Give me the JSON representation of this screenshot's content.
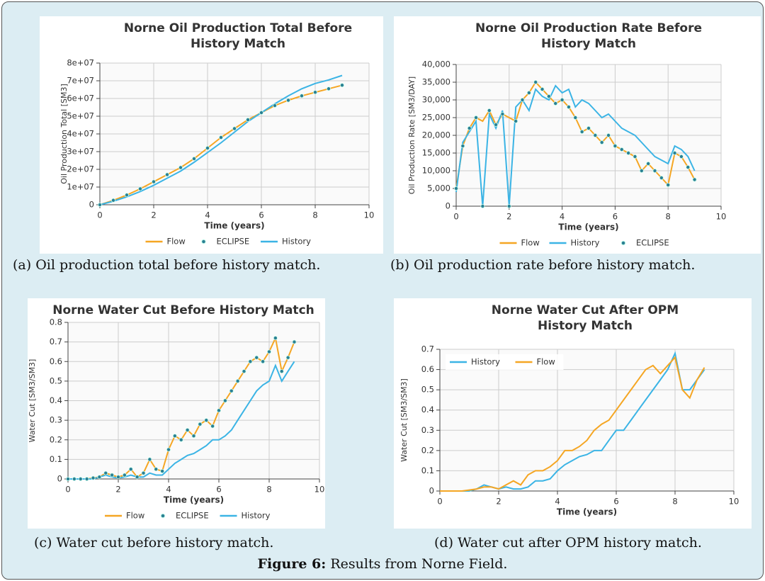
{
  "chart_data": [
    {
      "type": "line",
      "title": "Norne Oil Production Total Before History Match",
      "x_label": "Time (years)",
      "y_label": "Oil Production Total [SM3]",
      "x": [
        0,
        0.5,
        1,
        1.5,
        2,
        2.5,
        3,
        3.5,
        4,
        4.5,
        5,
        5.5,
        6,
        6.5,
        7,
        7.5,
        8,
        8.5,
        9
      ],
      "series": [
        {
          "name": "Flow",
          "color": "#f5a623",
          "style": "line",
          "values": [
            0,
            2500000,
            5500000,
            9000000,
            13000000,
            17000000,
            21000000,
            26000000,
            32000000,
            38000000,
            43000000,
            48000000,
            52000000,
            56000000,
            59000000,
            61500000,
            63500000,
            65500000,
            67500000
          ]
        },
        {
          "name": "ECLIPSE",
          "color": "#2b7f93",
          "style": "markers",
          "values": [
            0,
            2500000,
            5500000,
            9000000,
            13000000,
            17000000,
            21000000,
            26000000,
            32000000,
            38000000,
            43000000,
            48000000,
            52000000,
            56000000,
            59000000,
            61500000,
            63500000,
            65500000,
            67500000
          ]
        },
        {
          "name": "History",
          "color": "#3bb4e5",
          "style": "line",
          "values": [
            0,
            2000000,
            4500000,
            7500000,
            11000000,
            15000000,
            19000000,
            24000000,
            29500000,
            35000000,
            41000000,
            47000000,
            52000000,
            57000000,
            61500000,
            65500000,
            68500000,
            70500000,
            73000000
          ]
        }
      ],
      "xlim": [
        0,
        10
      ],
      "xticks": [
        0,
        2,
        4,
        6,
        8,
        10
      ],
      "ylim": [
        0,
        80000000
      ],
      "yticks": [
        0,
        {
          "value": 10000000,
          "label": "1e+07"
        },
        {
          "value": 20000000,
          "label": "2e+07"
        },
        {
          "value": 30000000,
          "label": "3e+07"
        },
        {
          "value": 40000000,
          "label": "4e+07"
        },
        {
          "value": 50000000,
          "label": "5e+07"
        },
        {
          "value": 60000000,
          "label": "6e+07"
        },
        {
          "value": 70000000,
          "label": "7e+07"
        },
        {
          "value": 80000000,
          "label": "8e+07"
        }
      ],
      "grid": true,
      "legend": "bottom"
    },
    {
      "type": "line",
      "title": "Norne Oil Production Rate Before History Match",
      "x_label": "Time (years)",
      "y_label": "Oil Production Rate [SM3/DAY]",
      "x": [
        0,
        0.25,
        0.5,
        0.75,
        1,
        1.25,
        1.5,
        1.75,
        2,
        2.25,
        2.5,
        2.75,
        3,
        3.25,
        3.5,
        3.75,
        4,
        4.25,
        4.5,
        4.75,
        5,
        5.25,
        5.5,
        5.75,
        6,
        6.25,
        6.5,
        6.75,
        7,
        7.25,
        7.5,
        7.75,
        8,
        8.25,
        8.5,
        8.75,
        9
      ],
      "series": [
        {
          "name": "Flow",
          "color": "#f5a623",
          "style": "line",
          "values": [
            5000,
            17000,
            22000,
            25000,
            24000,
            27000,
            23000,
            26000,
            25000,
            24000,
            30000,
            32000,
            35000,
            33000,
            31000,
            29000,
            30000,
            28000,
            25000,
            21000,
            22000,
            20000,
            18000,
            20000,
            17000,
            16000,
            15000,
            14000,
            10000,
            12000,
            10000,
            8000,
            6000,
            15000,
            14000,
            11000,
            7500
          ]
        },
        {
          "name": "History",
          "color": "#3bb4e5",
          "style": "line",
          "values": [
            4000,
            18000,
            21000,
            24000,
            0,
            26000,
            22000,
            27000,
            0,
            28000,
            30000,
            27000,
            33000,
            31000,
            30000,
            34000,
            32000,
            33000,
            28000,
            30000,
            29000,
            27000,
            25000,
            26000,
            24000,
            22000,
            21000,
            20000,
            18000,
            16000,
            14000,
            13000,
            12000,
            17000,
            16000,
            14000,
            10000
          ]
        },
        {
          "name": "ECLIPSE",
          "color": "#2b7f93",
          "style": "markers",
          "values": [
            5000,
            17000,
            22000,
            25000,
            0,
            27000,
            23000,
            26000,
            0,
            24000,
            30000,
            32000,
            35000,
            33000,
            31000,
            29000,
            30000,
            28000,
            25000,
            21000,
            22000,
            20000,
            18000,
            20000,
            17000,
            16000,
            15000,
            14000,
            10000,
            12000,
            10000,
            8000,
            6000,
            15000,
            14000,
            11000,
            7500
          ]
        }
      ],
      "xlim": [
        0,
        10
      ],
      "xticks": [
        0,
        2,
        4,
        6,
        8,
        10
      ],
      "ylim": [
        0,
        40000
      ],
      "yticks": [
        0,
        {
          "value": 5000,
          "label": "5,000"
        },
        {
          "value": 10000,
          "label": "10,000"
        },
        {
          "value": 15000,
          "label": "15,000"
        },
        {
          "value": 20000,
          "label": "20,000"
        },
        {
          "value": 25000,
          "label": "25,000"
        },
        {
          "value": 30000,
          "label": "30,000"
        },
        {
          "value": 35000,
          "label": "35,000"
        },
        {
          "value": 40000,
          "label": "40,000"
        }
      ],
      "grid": true,
      "legend": "bottom"
    },
    {
      "type": "line",
      "title": "Norne Water Cut Before History Match",
      "x_label": "Time (years)",
      "y_label": "Water Cut [SM3/SM3]",
      "x": [
        0,
        0.25,
        0.5,
        0.75,
        1,
        1.25,
        1.5,
        1.75,
        2,
        2.25,
        2.5,
        2.75,
        3,
        3.25,
        3.5,
        3.75,
        4,
        4.25,
        4.5,
        4.75,
        5,
        5.25,
        5.5,
        5.75,
        6,
        6.25,
        6.5,
        6.75,
        7,
        7.25,
        7.5,
        7.75,
        8,
        8.25,
        8.5,
        8.75,
        9
      ],
      "series": [
        {
          "name": "Flow",
          "color": "#f5a623",
          "style": "line",
          "values": [
            0,
            0,
            0,
            0,
            0.005,
            0.01,
            0.03,
            0.02,
            0.01,
            0.02,
            0.05,
            0.01,
            0.03,
            0.1,
            0.05,
            0.04,
            0.15,
            0.22,
            0.2,
            0.25,
            0.22,
            0.28,
            0.3,
            0.27,
            0.35,
            0.4,
            0.45,
            0.5,
            0.55,
            0.6,
            0.62,
            0.6,
            0.65,
            0.72,
            0.55,
            0.62,
            0.7
          ]
        },
        {
          "name": "ECLIPSE",
          "color": "#2b7f93",
          "style": "markers",
          "values": [
            0,
            0,
            0,
            0,
            0.005,
            0.01,
            0.03,
            0.02,
            0.01,
            0.02,
            0.05,
            0.01,
            0.03,
            0.1,
            0.05,
            0.04,
            0.15,
            0.22,
            0.2,
            0.25,
            0.22,
            0.28,
            0.3,
            0.27,
            0.35,
            0.4,
            0.45,
            0.5,
            0.55,
            0.6,
            0.62,
            0.6,
            0.65,
            0.72,
            0.55,
            0.62,
            0.7
          ]
        },
        {
          "name": "History",
          "color": "#3bb4e5",
          "style": "line",
          "values": [
            0,
            0,
            0,
            0,
            0,
            0.01,
            0.02,
            0.01,
            0.005,
            0.01,
            0.02,
            0.01,
            0.01,
            0.03,
            0.02,
            0.02,
            0.05,
            0.08,
            0.1,
            0.12,
            0.13,
            0.15,
            0.17,
            0.2,
            0.2,
            0.22,
            0.25,
            0.3,
            0.35,
            0.4,
            0.45,
            0.48,
            0.5,
            0.58,
            0.5,
            0.55,
            0.6
          ]
        }
      ],
      "xlim": [
        0,
        10
      ],
      "xticks": [
        0,
        2,
        4,
        6,
        8,
        10
      ],
      "ylim": [
        0,
        0.8
      ],
      "yticks": [
        0,
        0.1,
        0.2,
        0.3,
        0.4,
        0.5,
        0.6,
        0.7,
        0.8
      ],
      "grid": true,
      "legend": "bottom"
    },
    {
      "type": "line",
      "title": "Norne Water Cut After OPM History Match",
      "x_label": "Time (years)",
      "y_label": "Water Cut [SM3/SM3]",
      "x": [
        0,
        0.25,
        0.5,
        0.75,
        1,
        1.25,
        1.5,
        1.75,
        2,
        2.25,
        2.5,
        2.75,
        3,
        3.25,
        3.5,
        3.75,
        4,
        4.25,
        4.5,
        4.75,
        5,
        5.25,
        5.5,
        5.75,
        6,
        6.25,
        6.5,
        6.75,
        7,
        7.25,
        7.5,
        7.75,
        8,
        8.25,
        8.5,
        8.75,
        9
      ],
      "series": [
        {
          "name": "History",
          "color": "#3bb4e5",
          "style": "line",
          "values": [
            0,
            0,
            0,
            0,
            0,
            0.01,
            0.03,
            0.02,
            0.01,
            0.02,
            0.01,
            0.01,
            0.02,
            0.05,
            0.05,
            0.06,
            0.1,
            0.13,
            0.15,
            0.17,
            0.18,
            0.2,
            0.2,
            0.25,
            0.3,
            0.3,
            0.35,
            0.4,
            0.45,
            0.5,
            0.55,
            0.6,
            0.68,
            0.5,
            0.5,
            0.55,
            0.6
          ]
        },
        {
          "name": "Flow",
          "color": "#f5a623",
          "style": "line",
          "values": [
            0,
            0,
            0,
            0,
            0.005,
            0.01,
            0.02,
            0.02,
            0.01,
            0.03,
            0.05,
            0.03,
            0.08,
            0.1,
            0.1,
            0.12,
            0.15,
            0.2,
            0.2,
            0.22,
            0.25,
            0.3,
            0.33,
            0.35,
            0.4,
            0.45,
            0.5,
            0.55,
            0.6,
            0.62,
            0.58,
            0.62,
            0.66,
            0.5,
            0.46,
            0.55,
            0.61
          ]
        }
      ],
      "xlim": [
        0,
        10
      ],
      "xticks": [
        0,
        2,
        4,
        6,
        8,
        10
      ],
      "ylim": [
        0,
        0.7
      ],
      "yticks": [
        0,
        0.1,
        0.2,
        0.3,
        0.4,
        0.5,
        0.6,
        0.7
      ],
      "grid": true,
      "legend": "upper left"
    }
  ],
  "captions": [
    "(a) Oil production total before history match.",
    "(b) Oil production rate before history match.",
    "(c) Water cut before history match.",
    "(d) Water cut after OPM history match."
  ],
  "figure_caption": {
    "label": "Figure 6:",
    "text": "Results from Norne Field."
  }
}
